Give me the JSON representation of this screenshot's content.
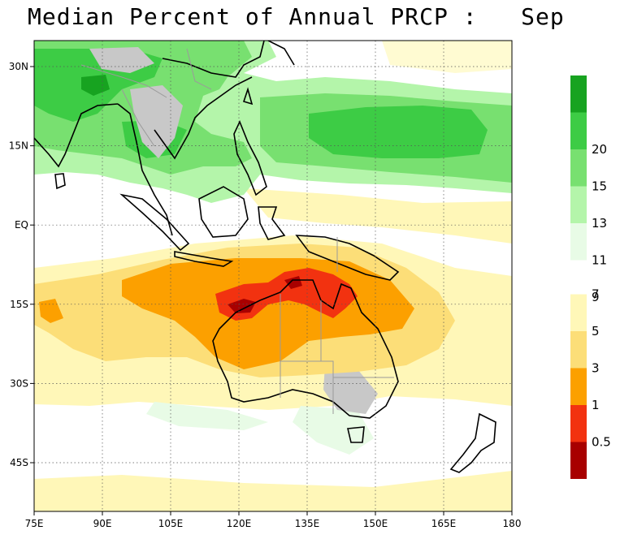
{
  "title": "Median Percent of Annual PRCP :   Sep",
  "map": {
    "lon_range": [
      75,
      180
    ],
    "lat_range": [
      -54,
      35
    ],
    "lon_ticks": [
      {
        "value": 75,
        "label": "75E"
      },
      {
        "value": 90,
        "label": "90E"
      },
      {
        "value": 105,
        "label": "105E"
      },
      {
        "value": 120,
        "label": "120E"
      },
      {
        "value": 135,
        "label": "135E"
      },
      {
        "value": 150,
        "label": "150E"
      },
      {
        "value": 165,
        "label": "165E"
      },
      {
        "value": 180,
        "label": "180"
      }
    ],
    "lat_ticks": [
      {
        "value": 30,
        "label": "30N"
      },
      {
        "value": 15,
        "label": "15N"
      },
      {
        "value": 0,
        "label": "EQ"
      },
      {
        "value": -15,
        "label": "15S"
      },
      {
        "value": -30,
        "label": "30S"
      },
      {
        "value": -45,
        "label": "45S"
      }
    ]
  },
  "colorbar": {
    "upper": [
      {
        "color": "#ffffff",
        "label": "9"
      },
      {
        "color": "#e8fbe6",
        "label": "11"
      },
      {
        "color": "#b4f5aa",
        "label": "13"
      },
      {
        "color": "#78e070",
        "label": "15"
      },
      {
        "color": "#3dcc45",
        "label": "20"
      },
      {
        "color": "#17a320",
        "label": ""
      }
    ],
    "lower": [
      {
        "color": "#a80000",
        "label": "0.5"
      },
      {
        "color": "#f23210",
        "label": "1"
      },
      {
        "color": "#fca000",
        "label": "3"
      },
      {
        "color": "#fcde78",
        "label": "5"
      },
      {
        "color": "#fff7b8",
        "label": "7"
      }
    ]
  },
  "colors": {
    "ocean_dry": "#fffbd2",
    "land_gray": "#c8c8c8"
  }
}
